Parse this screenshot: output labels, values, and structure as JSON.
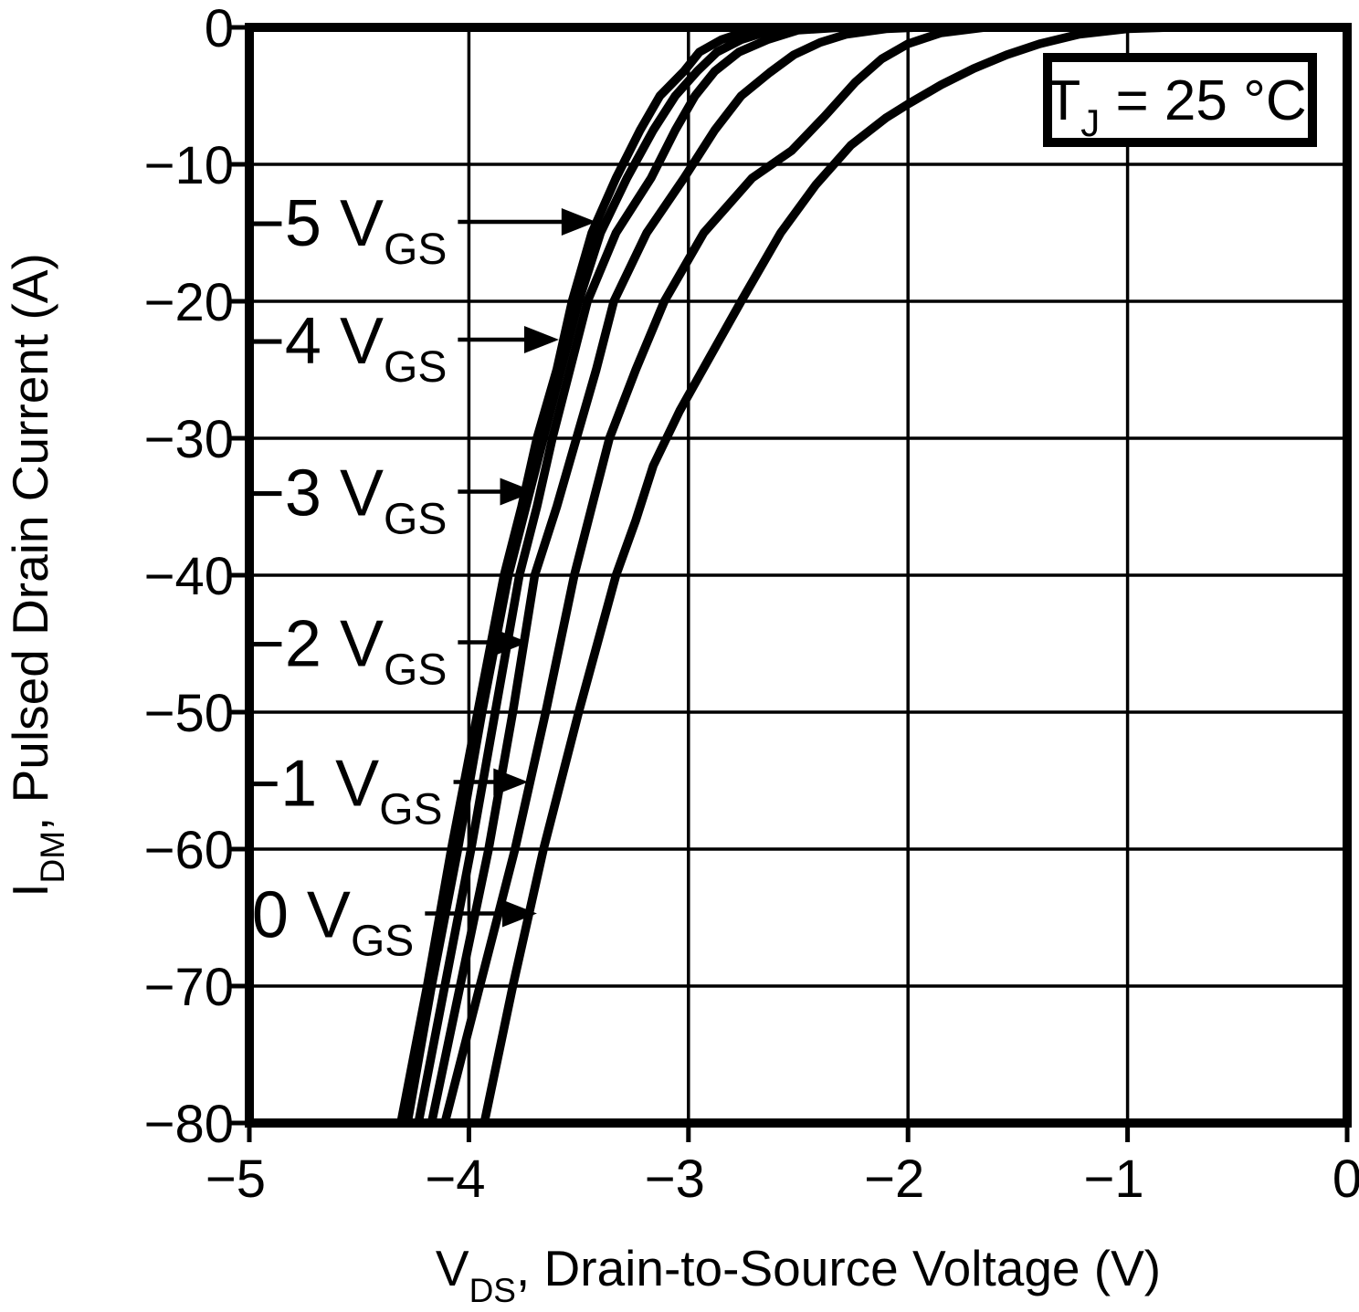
{
  "page": {
    "background": "#ffffff",
    "ink": "#000000",
    "description": "Pulsed drain current vs drain-to-source voltage characteristic curves"
  },
  "annotation": {
    "text": "T_J = 25 °C",
    "parts": [
      {
        "t": "T"
      },
      {
        "t": "J",
        "sub": true
      },
      {
        "t": " = 25 °C"
      }
    ]
  },
  "chart_data": {
    "type": "line",
    "title": "",
    "xlabel": "V_DS, Drain-to-Source Voltage (V)",
    "xlabel_parts": [
      {
        "t": "V"
      },
      {
        "t": "DS",
        "sub": true
      },
      {
        "t": ", Drain-to-Source Voltage (V)"
      }
    ],
    "ylabel": "I_DM, Pulsed Drain Current (A)",
    "ylabel_parts": [
      {
        "t": "I"
      },
      {
        "t": "DM",
        "sub": true
      },
      {
        "t": ", Pulsed Drain Current (A)"
      }
    ],
    "xlim": [
      -5,
      0
    ],
    "ylim": [
      -80,
      0
    ],
    "grid": true,
    "legend_position": "none",
    "x_ticks": [
      {
        "v": -5,
        "label": "−5"
      },
      {
        "v": -4,
        "label": "−4"
      },
      {
        "v": -3,
        "label": "−3"
      },
      {
        "v": -2,
        "label": "−2"
      },
      {
        "v": -1,
        "label": "−1"
      },
      {
        "v": 0,
        "label": "0"
      }
    ],
    "y_ticks": [
      {
        "v": 0,
        "label": "0"
      },
      {
        "v": -10,
        "label": "−10"
      },
      {
        "v": -20,
        "label": "−20"
      },
      {
        "v": -30,
        "label": "−30"
      },
      {
        "v": -40,
        "label": "−40"
      },
      {
        "v": -50,
        "label": "−50"
      },
      {
        "v": -60,
        "label": "−60"
      },
      {
        "v": -70,
        "label": "−70"
      },
      {
        "v": -80,
        "label": "−80"
      }
    ],
    "series": [
      {
        "name": "-5 V_GS",
        "vgs": -5,
        "points": [
          [
            -4.31,
            -80
          ],
          [
            -4.19,
            -70
          ],
          [
            -4.08,
            -60
          ],
          [
            -3.96,
            -50
          ],
          [
            -3.84,
            -40
          ],
          [
            -3.76,
            -35
          ],
          [
            -3.69,
            -30
          ],
          [
            -3.6,
            -25
          ],
          [
            -3.53,
            -20
          ],
          [
            -3.44,
            -15
          ],
          [
            -3.33,
            -11
          ],
          [
            -3.22,
            -7.5
          ],
          [
            -3.13,
            -5
          ],
          [
            -3.02,
            -3.2
          ],
          [
            -2.95,
            -1.8
          ],
          [
            -2.85,
            -0.9
          ],
          [
            -2.72,
            -0.2
          ],
          [
            -2.55,
            0
          ],
          [
            0,
            0
          ]
        ]
      },
      {
        "name": "-4 V_GS",
        "vgs": -4,
        "points": [
          [
            -4.28,
            -80
          ],
          [
            -4.17,
            -70
          ],
          [
            -4.05,
            -60
          ],
          [
            -3.94,
            -50
          ],
          [
            -3.82,
            -40
          ],
          [
            -3.74,
            -35
          ],
          [
            -3.66,
            -30
          ],
          [
            -3.58,
            -25
          ],
          [
            -3.5,
            -20
          ],
          [
            -3.4,
            -15
          ],
          [
            -3.28,
            -11
          ],
          [
            -3.16,
            -7.5
          ],
          [
            -3.06,
            -5
          ],
          [
            -2.96,
            -3.2
          ],
          [
            -2.87,
            -1.8
          ],
          [
            -2.76,
            -0.9
          ],
          [
            -2.62,
            -0.2
          ],
          [
            -2.45,
            0
          ],
          [
            0,
            0
          ]
        ]
      },
      {
        "name": "-3 V_GS",
        "vgs": -3,
        "points": [
          [
            -4.23,
            -80
          ],
          [
            -4.11,
            -70
          ],
          [
            -3.99,
            -60
          ],
          [
            -3.88,
            -50
          ],
          [
            -3.77,
            -40
          ],
          [
            -3.69,
            -35
          ],
          [
            -3.62,
            -30
          ],
          [
            -3.54,
            -25
          ],
          [
            -3.46,
            -20
          ],
          [
            -3.33,
            -15
          ],
          [
            -3.17,
            -11
          ],
          [
            -3.06,
            -7.5
          ],
          [
            -2.97,
            -5
          ],
          [
            -2.88,
            -3.2
          ],
          [
            -2.77,
            -1.8
          ],
          [
            -2.64,
            -0.9
          ],
          [
            -2.5,
            -0.2
          ],
          [
            -2.3,
            0
          ],
          [
            0,
            0
          ]
        ]
      },
      {
        "name": "-2 V_GS",
        "vgs": -2,
        "points": [
          [
            -4.17,
            -80
          ],
          [
            -4.04,
            -70
          ],
          [
            -3.91,
            -60
          ],
          [
            -3.8,
            -50
          ],
          [
            -3.7,
            -40
          ],
          [
            -3.6,
            -35
          ],
          [
            -3.51,
            -30
          ],
          [
            -3.42,
            -25
          ],
          [
            -3.34,
            -20
          ],
          [
            -3.19,
            -15
          ],
          [
            -3.02,
            -11
          ],
          [
            -2.88,
            -7.5
          ],
          [
            -2.76,
            -5
          ],
          [
            -2.63,
            -3.3
          ],
          [
            -2.52,
            -2
          ],
          [
            -2.4,
            -1.1
          ],
          [
            -2.28,
            -0.5
          ],
          [
            -2.1,
            -0.1
          ],
          [
            -1.95,
            0
          ],
          [
            0,
            0
          ]
        ]
      },
      {
        "name": "-1 V_GS",
        "vgs": -1,
        "points": [
          [
            -4.11,
            -80
          ],
          [
            -3.95,
            -70
          ],
          [
            -3.79,
            -60
          ],
          [
            -3.65,
            -50
          ],
          [
            -3.52,
            -40
          ],
          [
            -3.44,
            -35
          ],
          [
            -3.36,
            -30
          ],
          [
            -3.24,
            -25
          ],
          [
            -3.11,
            -20
          ],
          [
            -2.93,
            -15
          ],
          [
            -2.71,
            -11
          ],
          [
            -2.53,
            -9
          ],
          [
            -2.38,
            -6.5
          ],
          [
            -2.24,
            -4
          ],
          [
            -2.12,
            -2.3
          ],
          [
            -2.0,
            -1.2
          ],
          [
            -1.85,
            -0.4
          ],
          [
            -1.65,
            0
          ],
          [
            0,
            0
          ]
        ]
      },
      {
        "name": "0 V_GS",
        "vgs": 0,
        "points": [
          [
            -3.93,
            -80
          ],
          [
            -3.8,
            -70
          ],
          [
            -3.66,
            -60
          ],
          [
            -3.5,
            -50
          ],
          [
            -3.33,
            -40
          ],
          [
            -3.24,
            -36
          ],
          [
            -3.16,
            -32
          ],
          [
            -3.04,
            -28
          ],
          [
            -2.9,
            -24
          ],
          [
            -2.76,
            -20
          ],
          [
            -2.58,
            -15
          ],
          [
            -2.42,
            -11.5
          ],
          [
            -2.26,
            -8.6
          ],
          [
            -2.1,
            -6.6
          ],
          [
            -2.0,
            -5.6
          ],
          [
            -1.85,
            -4.2
          ],
          [
            -1.7,
            -3
          ],
          [
            -1.55,
            -2
          ],
          [
            -1.4,
            -1.2
          ],
          [
            -1.22,
            -0.5
          ],
          [
            -1.0,
            -0.1
          ],
          [
            -0.8,
            0
          ],
          [
            0,
            0
          ]
        ]
      }
    ],
    "curve_labels": [
      {
        "main": "−5 V",
        "sub": "GS",
        "i": -14.2,
        "tip_v": -3.42,
        "text_end_v": -4.1
      },
      {
        "main": "−4 V",
        "sub": "GS",
        "i": -22.8,
        "tip_v": -3.59,
        "text_end_v": -4.1
      },
      {
        "main": "−3 V",
        "sub": "GS",
        "i": -33.9,
        "tip_v": -3.7,
        "text_end_v": -4.1
      },
      {
        "main": "−2 V",
        "sub": "GS",
        "i": -44.9,
        "tip_v": -3.73,
        "text_end_v": -4.1
      },
      {
        "main": "−1 V",
        "sub": "GS",
        "i": -55.1,
        "tip_v": -3.73,
        "text_end_v": -4.12
      },
      {
        "main": "0 V",
        "sub": "GS",
        "i": -64.7,
        "tip_v": -3.69,
        "text_end_v": -4.25
      }
    ]
  }
}
